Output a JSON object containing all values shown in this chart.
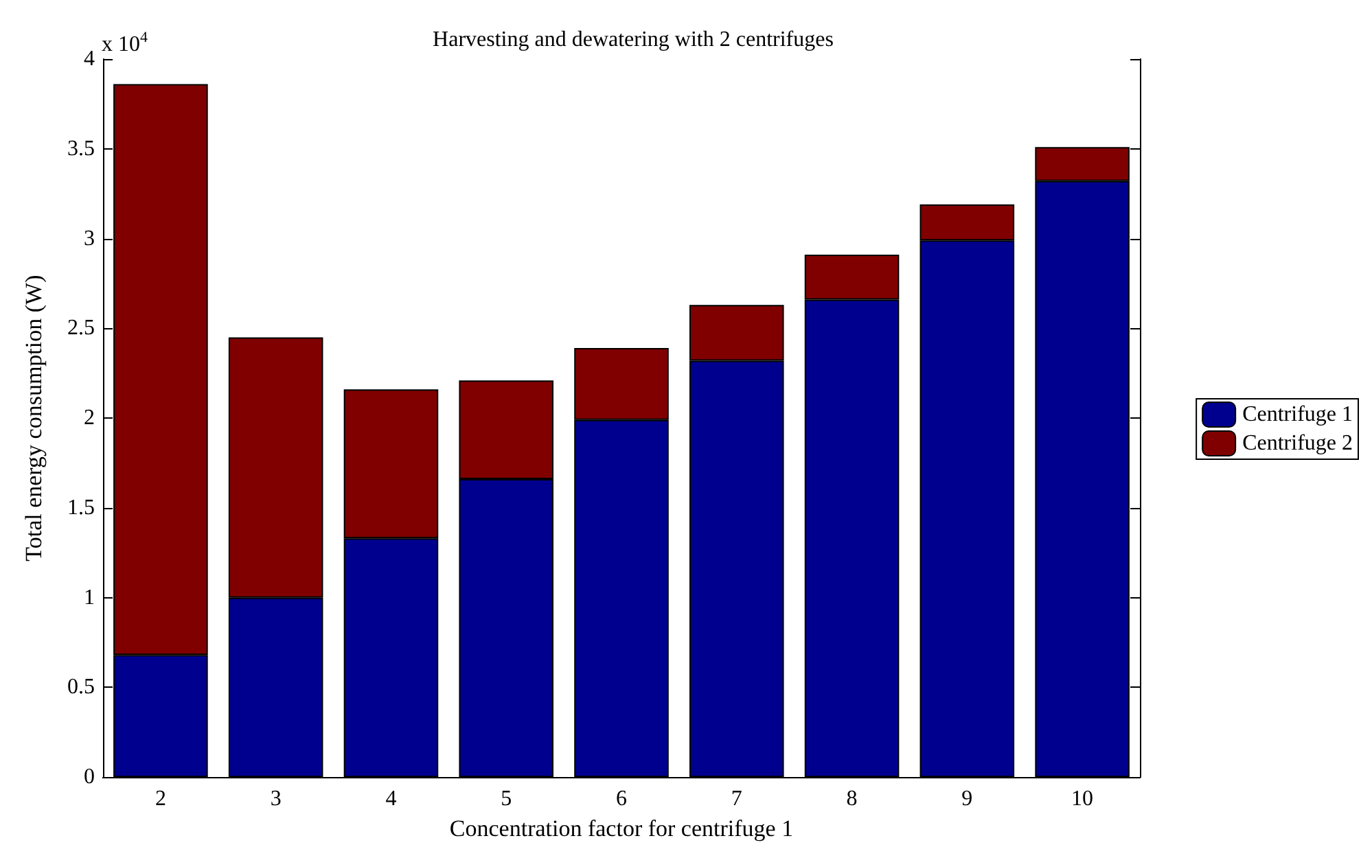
{
  "chart_data": {
    "type": "bar",
    "title": "Harvesting and dewatering with 2 centrifuges",
    "xlabel": "Concentration factor for centrifuge 1",
    "ylabel": "Total energy consumption (W)",
    "annotations": [
      "x 10$^{4}$"
    ],
    "categories": [
      "2",
      "3",
      "4",
      "5",
      "6",
      "7",
      "8",
      "9",
      "10"
    ],
    "stacked": true,
    "series": [
      {
        "name": "Centrifuge 1",
        "color": "#00008f",
        "values": [
          0.68,
          1.0,
          1.33,
          1.66,
          1.99,
          2.32,
          2.66,
          2.99,
          3.32
        ]
      },
      {
        "name": "Centrifuge 2",
        "color": "#800000",
        "values": [
          3.18,
          1.45,
          0.83,
          0.55,
          0.4,
          0.31,
          0.25,
          0.2,
          0.19
        ]
      }
    ],
    "ylim": [
      0,
      4
    ],
    "yticks": [
      0,
      0.5,
      1,
      1.5,
      2,
      2.5,
      3,
      3.5,
      4
    ],
    "grid": false,
    "legend": "right"
  }
}
